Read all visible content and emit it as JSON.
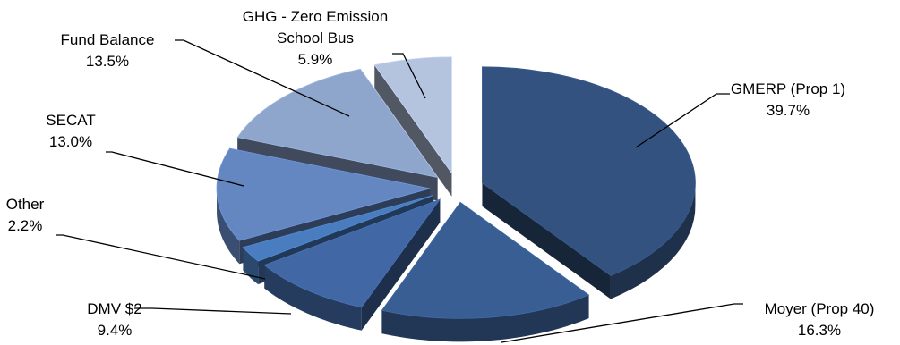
{
  "chart_data": {
    "type": "pie",
    "title": "",
    "style": "3d-exploded",
    "slices": [
      {
        "label": "GMERP (Prop 1)",
        "value": 39.7,
        "value_label": "39.7%",
        "color": "#33527f"
      },
      {
        "label": "Moyer (Prop 40)",
        "value": 16.3,
        "value_label": "16.3%",
        "color": "#395e93"
      },
      {
        "label": "DMV $2",
        "value": 9.4,
        "value_label": "9.4%",
        "color": "#4168a4"
      },
      {
        "label": "Other",
        "value": 2.2,
        "value_label": "2.2%",
        "color": "#4a7cc0"
      },
      {
        "label": "SECAT",
        "value": 13.0,
        "value_label": "13.0%",
        "color": "#6487c2"
      },
      {
        "label": "Fund Balance",
        "value": 13.5,
        "value_label": "13.5%",
        "color": "#8ea5cc"
      },
      {
        "label": "GHG - Zero Emission School Bus",
        "label_lines": [
          "GHG - Zero Emission",
          "School Bus"
        ],
        "value": 5.9,
        "value_label": "5.9%",
        "color": "#b4c3de"
      }
    ]
  }
}
